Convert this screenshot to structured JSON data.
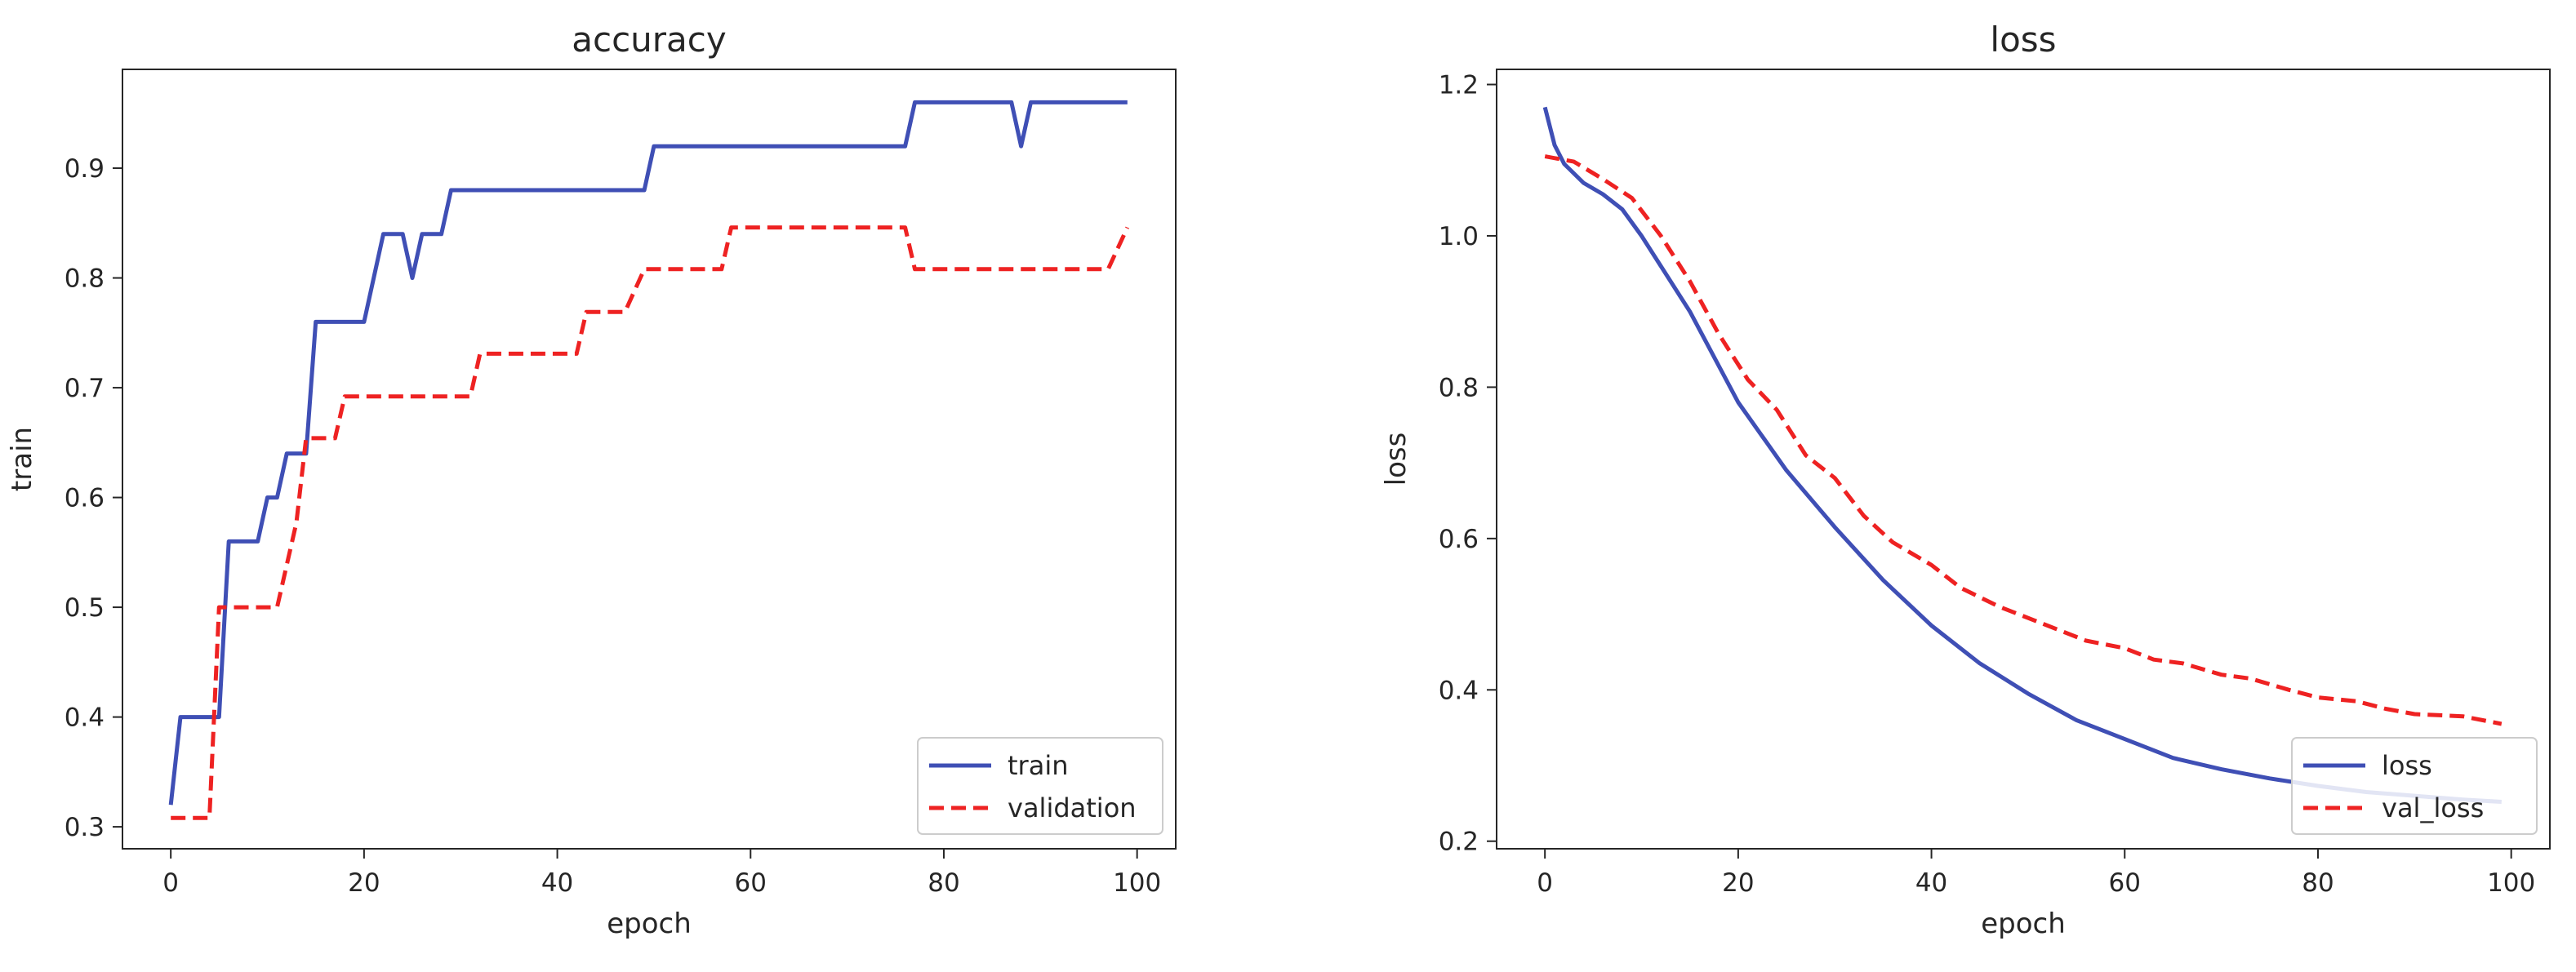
{
  "chart_data": [
    {
      "type": "line",
      "title": "accuracy",
      "xlabel": "epoch",
      "ylabel": "train",
      "xlim": [
        -5,
        104
      ],
      "ylim": [
        0.28,
        0.99
      ],
      "xticks": [
        0,
        20,
        40,
        60,
        80,
        100
      ],
      "yticks": [
        0.3,
        0.4,
        0.5,
        0.6,
        0.7,
        0.8,
        0.9
      ],
      "legend": "lower-right",
      "series": [
        {
          "name": "train",
          "color": "#3f4fb5",
          "dash": "solid",
          "points": [
            [
              0,
              0.32
            ],
            [
              1,
              0.4
            ],
            [
              5,
              0.4
            ],
            [
              6,
              0.56
            ],
            [
              9,
              0.56
            ],
            [
              10,
              0.6
            ],
            [
              11,
              0.6
            ],
            [
              12,
              0.64
            ],
            [
              14,
              0.64
            ],
            [
              15,
              0.76
            ],
            [
              20,
              0.76
            ],
            [
              22,
              0.84
            ],
            [
              24,
              0.84
            ],
            [
              25,
              0.8
            ],
            [
              26,
              0.84
            ],
            [
              28,
              0.84
            ],
            [
              29,
              0.88
            ],
            [
              49,
              0.88
            ],
            [
              50,
              0.92
            ],
            [
              76,
              0.92
            ],
            [
              77,
              0.96
            ],
            [
              87,
              0.96
            ],
            [
              88,
              0.92
            ],
            [
              89,
              0.96
            ],
            [
              99,
              0.96
            ]
          ]
        },
        {
          "name": "validation",
          "color": "#ee2222",
          "dash": "dashed",
          "points": [
            [
              0,
              0.308
            ],
            [
              4,
              0.308
            ],
            [
              5,
              0.5
            ],
            [
              11,
              0.5
            ],
            [
              13,
              0.577
            ],
            [
              14,
              0.654
            ],
            [
              17,
              0.654
            ],
            [
              18,
              0.692
            ],
            [
              31,
              0.692
            ],
            [
              32,
              0.731
            ],
            [
              42,
              0.731
            ],
            [
              43,
              0.769
            ],
            [
              47,
              0.769
            ],
            [
              49,
              0.808
            ],
            [
              57,
              0.808
            ],
            [
              58,
              0.846
            ],
            [
              76,
              0.846
            ],
            [
              77,
              0.808
            ],
            [
              97,
              0.808
            ],
            [
              99,
              0.846
            ]
          ]
        }
      ]
    },
    {
      "type": "line",
      "title": "loss",
      "xlabel": "epoch",
      "ylabel": "loss",
      "xlim": [
        -5,
        104
      ],
      "ylim": [
        0.19,
        1.22
      ],
      "xticks": [
        0,
        20,
        40,
        60,
        80,
        100
      ],
      "yticks": [
        0.2,
        0.4,
        0.6,
        0.8,
        1.0,
        1.2
      ],
      "legend": "lower-right",
      "series": [
        {
          "name": "loss",
          "color": "#3f4fb5",
          "dash": "solid",
          "points": [
            [
              0,
              1.17
            ],
            [
              1,
              1.12
            ],
            [
              2,
              1.095
            ],
            [
              4,
              1.07
            ],
            [
              6,
              1.055
            ],
            [
              8,
              1.035
            ],
            [
              10,
              1.0
            ],
            [
              15,
              0.9
            ],
            [
              20,
              0.78
            ],
            [
              25,
              0.69
            ],
            [
              30,
              0.615
            ],
            [
              35,
              0.545
            ],
            [
              40,
              0.485
            ],
            [
              45,
              0.435
            ],
            [
              50,
              0.395
            ],
            [
              55,
              0.36
            ],
            [
              60,
              0.335
            ],
            [
              65,
              0.31
            ],
            [
              70,
              0.295
            ],
            [
              75,
              0.283
            ],
            [
              80,
              0.273
            ],
            [
              85,
              0.265
            ],
            [
              90,
              0.26
            ],
            [
              95,
              0.255
            ],
            [
              99,
              0.252
            ]
          ]
        },
        {
          "name": "val_loss",
          "color": "#ee2222",
          "dash": "dashed",
          "points": [
            [
              0,
              1.105
            ],
            [
              3,
              1.098
            ],
            [
              6,
              1.075
            ],
            [
              9,
              1.05
            ],
            [
              12,
              1.0
            ],
            [
              15,
              0.94
            ],
            [
              18,
              0.87
            ],
            [
              21,
              0.81
            ],
            [
              24,
              0.77
            ],
            [
              27,
              0.71
            ],
            [
              30,
              0.68
            ],
            [
              33,
              0.63
            ],
            [
              36,
              0.595
            ],
            [
              40,
              0.565
            ],
            [
              43,
              0.535
            ],
            [
              47,
              0.51
            ],
            [
              50,
              0.495
            ],
            [
              53,
              0.48
            ],
            [
              56,
              0.465
            ],
            [
              60,
              0.455
            ],
            [
              63,
              0.44
            ],
            [
              66,
              0.435
            ],
            [
              70,
              0.42
            ],
            [
              73,
              0.415
            ],
            [
              77,
              0.4
            ],
            [
              80,
              0.39
            ],
            [
              84,
              0.385
            ],
            [
              87,
              0.375
            ],
            [
              90,
              0.368
            ],
            [
              95,
              0.365
            ],
            [
              99,
              0.355
            ]
          ]
        }
      ]
    }
  ]
}
